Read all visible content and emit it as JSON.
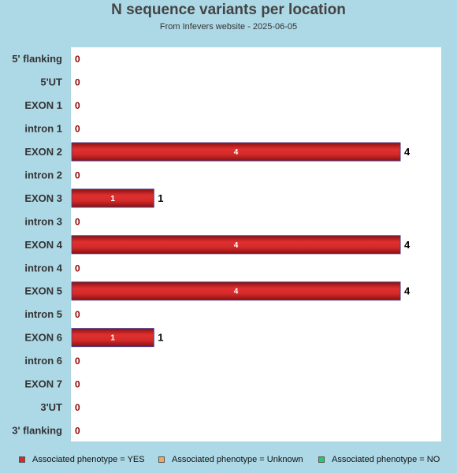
{
  "chart_data": {
    "type": "bar",
    "orientation": "horizontal",
    "title": "N sequence variants per location",
    "subtitle": "From Infevers website - 2025-06-05",
    "categories": [
      "5' flanking",
      "5'UT",
      "EXON 1",
      "intron 1",
      "EXON 2",
      "intron 2",
      "EXON 3",
      "intron 3",
      "EXON 4",
      "intron 4",
      "EXON 5",
      "intron 5",
      "EXON 6",
      "intron 6",
      "EXON 7",
      "3'UT",
      "3' flanking"
    ],
    "series": [
      {
        "name": "Associated phenotype = YES",
        "color": "#d42a2a",
        "values": [
          0,
          0,
          0,
          0,
          4,
          0,
          1,
          0,
          4,
          0,
          4,
          0,
          1,
          0,
          0,
          0,
          0
        ]
      },
      {
        "name": "Associated phenotype = Unknown",
        "color": "#f4a460",
        "values": [
          0,
          0,
          0,
          0,
          0,
          0,
          0,
          0,
          0,
          0,
          0,
          0,
          0,
          0,
          0,
          0,
          0
        ]
      },
      {
        "name": "Associated phenotype = NO",
        "color": "#22cc66",
        "values": [
          0,
          0,
          0,
          0,
          0,
          0,
          0,
          0,
          0,
          0,
          0,
          0,
          0,
          0,
          0,
          0,
          0
        ]
      }
    ],
    "totals": [
      0,
      0,
      0,
      0,
      4,
      0,
      1,
      0,
      4,
      0,
      4,
      0,
      1,
      0,
      0,
      0,
      0
    ],
    "xlim": [
      0,
      4
    ],
    "legend": "bottom",
    "grid": false,
    "colors": {
      "background": "#add8e6",
      "plot_background": "#ffffff",
      "bar_edge": "#4a3a8a",
      "zero_label": "#8b0000"
    }
  }
}
